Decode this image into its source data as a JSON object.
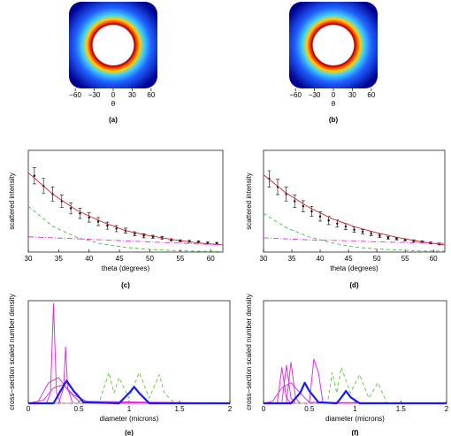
{
  "chart_data": [
    {
      "type": "image",
      "caption": "(a)",
      "xlabel": "θ",
      "xlim": [
        -70,
        70
      ],
      "xticks": [
        {
          "value": -60,
          "label": "−60"
        },
        {
          "value": -30,
          "label": "−30"
        },
        0,
        30,
        60
      ]
    },
    {
      "type": "image",
      "caption": "(b)",
      "xlabel": "θ",
      "xlim": [
        -70,
        70
      ],
      "xticks": [
        {
          "value": -60,
          "label": "−60"
        },
        {
          "value": -30,
          "label": "−30"
        },
        0,
        30,
        60
      ]
    },
    {
      "type": "line",
      "caption": "(c)",
      "xlabel": "theta (degrees)",
      "ylabel": "scattered intensity",
      "xlim": [
        30,
        62
      ],
      "ylim": [
        0,
        1
      ],
      "xticks": [
        30,
        35,
        40,
        45,
        50,
        55,
        60
      ],
      "series": [
        {
          "color": "#000000",
          "style": "points",
          "x": [
            31,
            32.5,
            34,
            35.5,
            37,
            38.5,
            40,
            41.5,
            43,
            44.5,
            46,
            47.5,
            49,
            50.5,
            52,
            53.5,
            55,
            56.5,
            58,
            59.5,
            61
          ],
          "values": [
            0.75,
            0.65,
            0.57,
            0.5,
            0.43,
            0.38,
            0.34,
            0.3,
            0.26,
            0.23,
            0.21,
            0.18,
            0.16,
            0.15,
            0.14,
            0.12,
            0.11,
            0.105,
            0.1,
            0.09,
            0.085
          ],
          "errors": [
            0.08,
            0.075,
            0.07,
            0.06,
            0.055,
            0.05,
            0.045,
            0.04,
            0.035,
            0.03,
            0.025,
            0.02,
            0.02,
            0.015,
            0.015,
            0.01,
            0.01,
            0.01,
            0.01,
            0.01,
            0.01
          ]
        },
        {
          "color": "#cc2222",
          "style": "solid",
          "x": [
            30,
            34,
            38,
            42,
            46,
            50,
            54,
            58,
            62
          ],
          "values": [
            0.78,
            0.57,
            0.41,
            0.3,
            0.21,
            0.16,
            0.12,
            0.09,
            0.07
          ]
        },
        {
          "color": "#44bb44",
          "style": "dashed",
          "x": [
            30,
            34,
            38,
            42,
            46,
            50,
            54,
            58,
            62
          ],
          "values": [
            0.45,
            0.254,
            0.143,
            0.081,
            0.046,
            0.026,
            0.015,
            0.008,
            0.005
          ]
        },
        {
          "color": "#dd33dd",
          "style": "dashdot",
          "x": [
            30,
            34,
            38,
            42,
            46,
            50,
            54,
            58,
            62
          ],
          "values": [
            0.15,
            0.14,
            0.13,
            0.12,
            0.11,
            0.1,
            0.09,
            0.08,
            0.07
          ]
        }
      ]
    },
    {
      "type": "line",
      "caption": "(d)",
      "xlabel": "theta (degrees)",
      "ylabel": "scattered intensity",
      "xlim": [
        30,
        62
      ],
      "ylim": [
        0,
        1
      ],
      "xticks": [
        30,
        35,
        40,
        45,
        50,
        55,
        60
      ],
      "series": [
        {
          "color": "#000000",
          "style": "points",
          "x": [
            31,
            32.5,
            34,
            35.5,
            37,
            38.5,
            40,
            41.5,
            43,
            44.5,
            46,
            47.5,
            49,
            50.5,
            52,
            53.5,
            55,
            56.5,
            58,
            59.5,
            61
          ],
          "values": [
            0.72,
            0.64,
            0.57,
            0.5,
            0.45,
            0.4,
            0.35,
            0.31,
            0.28,
            0.25,
            0.22,
            0.2,
            0.18,
            0.16,
            0.14,
            0.13,
            0.12,
            0.11,
            0.1,
            0.09,
            0.08
          ],
          "errors": [
            0.08,
            0.075,
            0.07,
            0.06,
            0.055,
            0.05,
            0.045,
            0.04,
            0.035,
            0.03,
            0.025,
            0.02,
            0.02,
            0.015,
            0.015,
            0.01,
            0.01,
            0.01,
            0.01,
            0.01,
            0.01
          ]
        },
        {
          "color": "#cc2222",
          "style": "solid",
          "x": [
            30,
            34,
            38,
            42,
            46,
            50,
            54,
            58,
            62
          ],
          "values": [
            0.76,
            0.58,
            0.44,
            0.33,
            0.25,
            0.19,
            0.14,
            0.1,
            0.07
          ]
        },
        {
          "color": "#44bb44",
          "style": "dashed",
          "x": [
            30,
            34,
            38,
            42,
            46,
            50,
            54,
            58,
            62
          ],
          "values": [
            0.38,
            0.24,
            0.15,
            0.09,
            0.05,
            0.03,
            0.02,
            0.01,
            0.01
          ]
        },
        {
          "color": "#dd33dd",
          "style": "dashdot",
          "x": [
            30,
            34,
            38,
            42,
            46,
            50,
            54,
            58,
            62
          ],
          "values": [
            0.14,
            0.13,
            0.12,
            0.115,
            0.11,
            0.1,
            0.095,
            0.09,
            0.085
          ]
        }
      ]
    },
    {
      "type": "line",
      "caption": "(e)",
      "xlabel": "diameter (microns)",
      "ylabel": "cross−section scaled number density",
      "xlim": [
        0,
        2
      ],
      "ylim": [
        0,
        1
      ],
      "xticks": [
        0,
        0.5,
        1,
        1.5,
        2
      ],
      "series": [
        {
          "color": "#dd33dd",
          "style": "solid",
          "width": 1,
          "x": [
            0,
            0.18,
            0.22,
            0.25,
            0.28,
            0.32,
            2
          ],
          "values": [
            0,
            0,
            0.1,
            0.97,
            0.1,
            0,
            0
          ]
        },
        {
          "color": "#dd33dd",
          "style": "solid",
          "width": 1,
          "x": [
            0,
            0.3,
            0.35,
            0.37,
            0.39,
            0.44,
            2
          ],
          "values": [
            0,
            0,
            0.15,
            0.55,
            0.15,
            0,
            0
          ]
        },
        {
          "color": "#dd33dd",
          "style": "solid",
          "width": 1,
          "x": [
            0,
            0.1,
            0.2,
            0.3,
            0.4,
            0.5,
            2
          ],
          "values": [
            0,
            0.02,
            0.2,
            0.25,
            0.12,
            0.02,
            0
          ]
        },
        {
          "color": "#dd33dd",
          "style": "solid",
          "width": 1,
          "x": [
            0,
            0.15,
            0.25,
            0.35,
            0.45,
            0.6,
            2
          ],
          "values": [
            0,
            0.03,
            0.15,
            0.18,
            0.08,
            0.01,
            0
          ]
        },
        {
          "color": "#66cc44",
          "style": "dashed",
          "width": 1,
          "x": [
            0,
            0.7,
            0.8,
            0.85,
            0.9,
            1,
            1.1,
            1.2,
            1.3,
            1.35,
            1.45,
            2
          ],
          "values": [
            0,
            0,
            0.3,
            0.1,
            0.25,
            0.05,
            0.3,
            0.05,
            0.28,
            0.1,
            0,
            0
          ]
        },
        {
          "color": "#1a1aee",
          "style": "solid",
          "width": 2.2,
          "x": [
            0,
            0.25,
            0.32,
            0.38,
            0.45,
            0.55,
            0.9,
            1,
            1.05,
            1.1,
            1.2,
            2
          ],
          "values": [
            0,
            0,
            0.12,
            0.22,
            0.12,
            0.01,
            0,
            0.1,
            0.16,
            0.1,
            0,
            0
          ]
        }
      ]
    },
    {
      "type": "line",
      "caption": "(f)",
      "xlabel": "diameter (microns)",
      "ylabel": "cross−section scaled number density",
      "xlim": [
        0,
        2
      ],
      "ylim": [
        0,
        1
      ],
      "xticks": [
        0,
        0.5,
        1,
        1.5,
        2
      ],
      "series": [
        {
          "color": "#dd33dd",
          "style": "solid",
          "width": 1,
          "x": [
            0,
            0.15,
            0.2,
            0.25,
            0.3,
            2
          ],
          "values": [
            0,
            0,
            0.35,
            0.05,
            0,
            0
          ]
        },
        {
          "color": "#dd33dd",
          "style": "solid",
          "width": 1,
          "x": [
            0,
            0.2,
            0.25,
            0.3,
            0.35,
            2
          ],
          "values": [
            0,
            0,
            0.37,
            0.05,
            0,
            0
          ]
        },
        {
          "color": "#dd33dd",
          "style": "solid",
          "width": 1,
          "x": [
            0,
            0.25,
            0.3,
            0.35,
            0.4,
            2
          ],
          "values": [
            0,
            0,
            0.4,
            0.05,
            0,
            0
          ]
        },
        {
          "color": "#dd33dd",
          "style": "solid",
          "width": 1,
          "x": [
            0,
            0.5,
            0.55,
            0.6,
            0.65,
            2
          ],
          "values": [
            0,
            0,
            0.43,
            0.3,
            0,
            0
          ]
        },
        {
          "color": "#dd33dd",
          "style": "solid",
          "width": 1,
          "x": [
            0,
            0.1,
            0.2,
            0.3,
            0.4,
            0.5,
            2
          ],
          "values": [
            0,
            0.02,
            0.15,
            0.2,
            0.1,
            0.01,
            0
          ]
        },
        {
          "color": "#66cc44",
          "style": "dashed",
          "width": 1,
          "x": [
            0,
            0.7,
            0.75,
            0.8,
            0.85,
            0.95,
            1.05,
            1.15,
            1.25,
            1.35,
            2
          ],
          "values": [
            0,
            0,
            0.3,
            0.1,
            0.35,
            0.1,
            0.28,
            0.05,
            0.2,
            0,
            0
          ]
        },
        {
          "color": "#1a1aee",
          "style": "solid",
          "width": 2.2,
          "x": [
            0,
            0.3,
            0.4,
            0.45,
            0.5,
            0.6,
            0.8,
            0.87,
            0.9,
            0.95,
            1.05,
            2
          ],
          "values": [
            0,
            0,
            0.1,
            0.2,
            0.12,
            0.01,
            0,
            0.08,
            0.12,
            0.06,
            0,
            0
          ]
        }
      ]
    }
  ]
}
